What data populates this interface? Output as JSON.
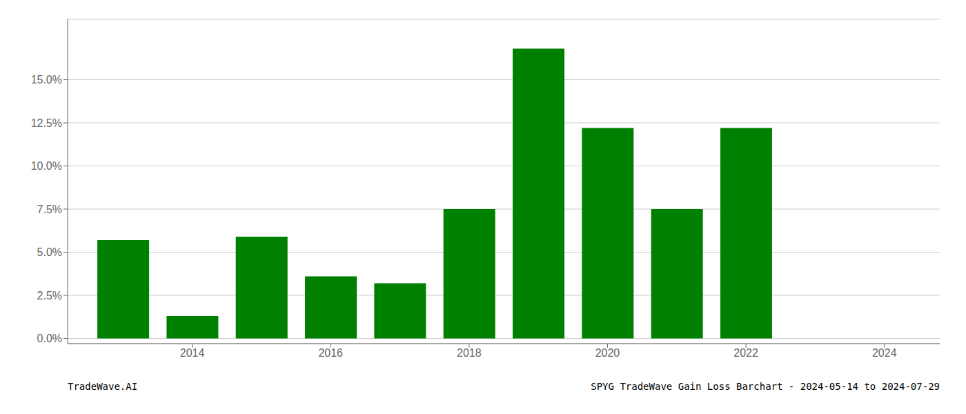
{
  "chart_data": {
    "type": "bar",
    "x": [
      2013,
      2014,
      2015,
      2016,
      2017,
      2018,
      2019,
      2020,
      2021,
      2022,
      2023
    ],
    "values": [
      0.057,
      0.013,
      0.059,
      0.036,
      0.032,
      0.075,
      0.168,
      0.122,
      0.075,
      0.122,
      0.0
    ],
    "color": "#008000",
    "xlim": [
      2012.2,
      2024.8
    ],
    "xticks": [
      2014,
      2016,
      2018,
      2020,
      2022,
      2024
    ],
    "ylim": [
      -0.003,
      0.185
    ],
    "yticks": [
      {
        "value": 0.0,
        "label": "0.0%"
      },
      {
        "value": 0.025,
        "label": "2.5%"
      },
      {
        "value": 0.05,
        "label": "5.0%"
      },
      {
        "value": 0.075,
        "label": "7.5%"
      },
      {
        "value": 0.1,
        "label": "10.0%"
      },
      {
        "value": 0.125,
        "label": "12.5%"
      },
      {
        "value": 0.15,
        "label": "15.0%"
      }
    ],
    "grid": true,
    "annotations": [
      "TradeWave.AI",
      "SPYG TradeWave Gain Loss Barchart - 2024-05-14 to 2024-07-29"
    ]
  }
}
